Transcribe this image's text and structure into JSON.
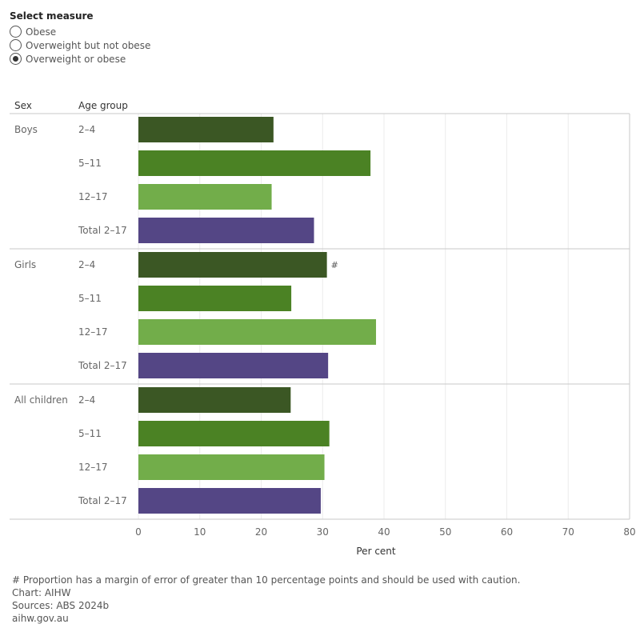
{
  "selector": {
    "title": "Select measure",
    "options": [
      {
        "label": "Obese",
        "selected": false
      },
      {
        "label": "Overweight but not obese",
        "selected": false
      },
      {
        "label": "Overweight or obese",
        "selected": true
      }
    ]
  },
  "headers": {
    "sex": "Sex",
    "age_group": "Age group"
  },
  "chart_data": {
    "type": "bar",
    "orientation": "horizontal",
    "xlabel": "Per cent",
    "xlim": [
      0,
      80
    ],
    "xticks": [
      0,
      10,
      20,
      30,
      40,
      50,
      60,
      70,
      80
    ],
    "grid": true,
    "groups": [
      {
        "name": "Boys",
        "bars": [
          {
            "label": "2–4",
            "value": 22.0,
            "flag": ""
          },
          {
            "label": "5–11",
            "value": 37.8,
            "flag": ""
          },
          {
            "label": "12–17",
            "value": 21.7,
            "flag": ""
          },
          {
            "label": "Total 2–17",
            "value": 28.6,
            "flag": ""
          }
        ]
      },
      {
        "name": "Girls",
        "bars": [
          {
            "label": "2–4",
            "value": 30.7,
            "flag": "#"
          },
          {
            "label": "5–11",
            "value": 24.9,
            "flag": ""
          },
          {
            "label": "12–17",
            "value": 38.7,
            "flag": ""
          },
          {
            "label": "Total 2–17",
            "value": 30.9,
            "flag": ""
          }
        ]
      },
      {
        "name": "All children",
        "bars": [
          {
            "label": "2–4",
            "value": 24.8,
            "flag": ""
          },
          {
            "label": "5–11",
            "value": 31.1,
            "flag": ""
          },
          {
            "label": "12–17",
            "value": 30.3,
            "flag": ""
          },
          {
            "label": "Total 2–17",
            "value": 29.7,
            "flag": ""
          }
        ]
      }
    ],
    "colors": {
      "2–4": "#3b5724",
      "5–11": "#4b8224",
      "12–17": "#72ad4a",
      "Total 2–17": "#544685"
    }
  },
  "footnotes": [
    "# Proportion has a margin of error of greater than 10 percentage points and should be used with caution.",
    "Chart: AIHW",
    "Sources: ABS 2024b",
    "aihw.gov.au"
  ]
}
